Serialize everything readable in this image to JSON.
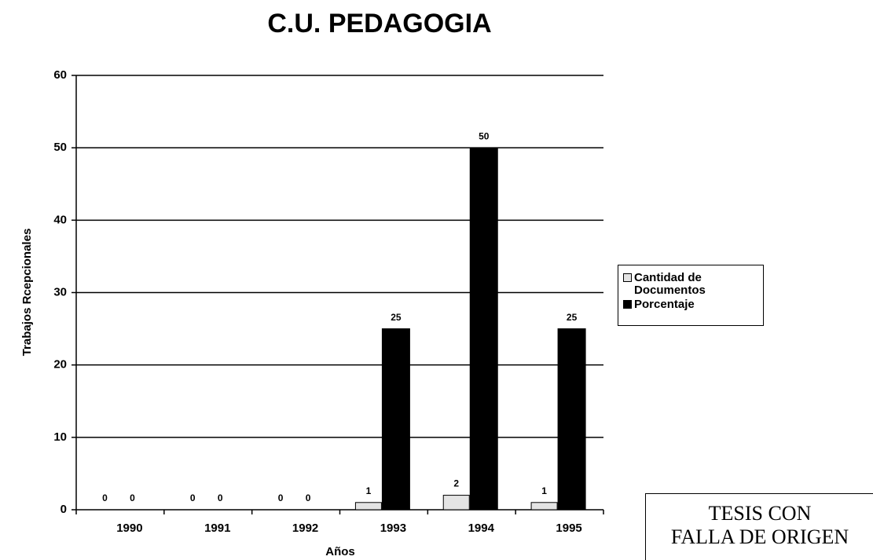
{
  "chart_data": {
    "type": "bar",
    "title": "C.U. PEDAGOGIA",
    "x_label": "Años",
    "y_label": "Trabajos Rcepcionales",
    "categories": [
      "1990",
      "1991",
      "1992",
      "1993",
      "1994",
      "1995"
    ],
    "series": [
      {
        "name": "Cantidad de Documentos",
        "color": "#e4e4e4",
        "values": [
          0,
          0,
          0,
          1,
          2,
          1
        ]
      },
      {
        "name": "Porcentaje",
        "color": "#000000",
        "values": [
          0,
          0,
          0,
          25,
          50,
          25
        ]
      }
    ],
    "ylim": [
      0,
      60
    ],
    "yticks": [
      0,
      10,
      20,
      30,
      40,
      50,
      60
    ],
    "grid": true,
    "legend": "right",
    "annotations": [
      "TESIS CON",
      "FALLA DE ORIGEN"
    ]
  }
}
